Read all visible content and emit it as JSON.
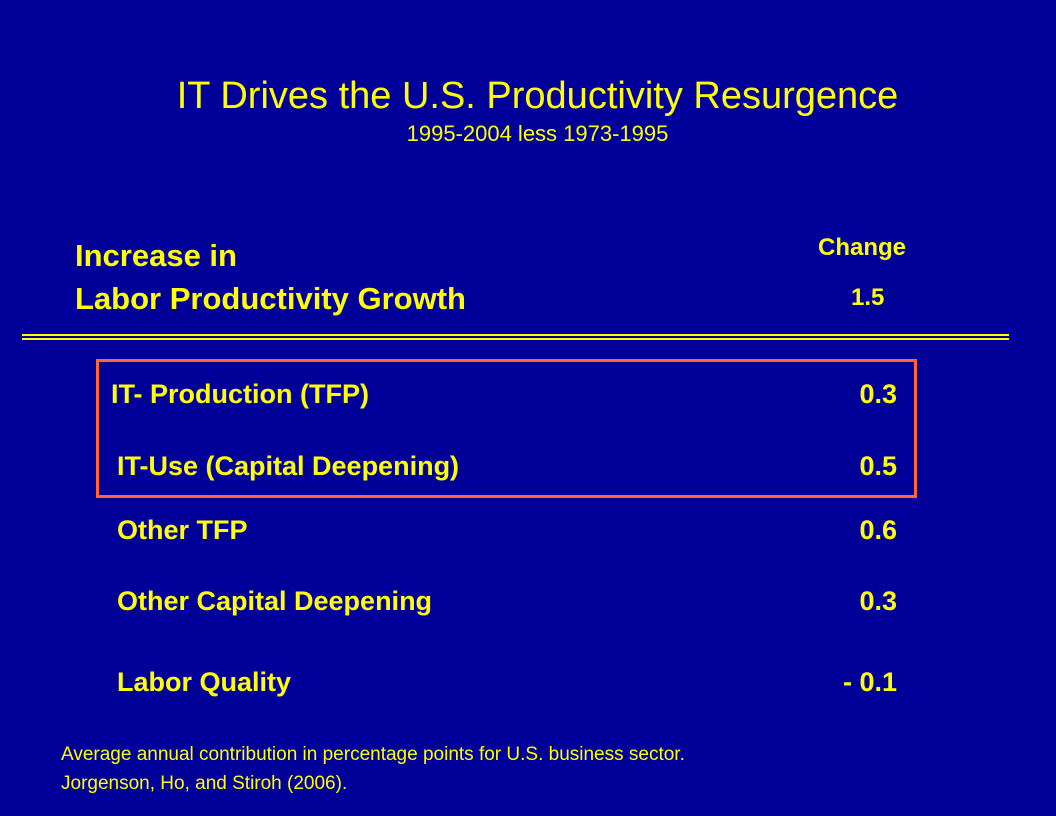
{
  "slide": {
    "title": "IT Drives the U.S. Productivity Resurgence",
    "subtitle": "1995-2004 less 1973-1995"
  },
  "header": {
    "label_line1": "Increase in",
    "label_line2": "Labor Productivity Growth",
    "change_label": "Change",
    "total_value": "1.5"
  },
  "rows": [
    {
      "label": "IT- Production (TFP)",
      "value": "0.3"
    },
    {
      "label": "IT-Use (Capital Deepening)",
      "value": "0.5"
    },
    {
      "label": "Other TFP",
      "value": "0.6"
    },
    {
      "label": "Other Capital Deepening",
      "value": "0.3"
    },
    {
      "label": "Labor Quality",
      "value": "- 0.1"
    }
  ],
  "footnote": {
    "line1": "Average annual contribution in percentage points for U.S. business sector.",
    "line2": "Jorgenson, Ho, and Stiroh (2006)."
  },
  "colors": {
    "background": "#000099",
    "text": "#ffff00",
    "highlight_border": "#ff6633"
  }
}
